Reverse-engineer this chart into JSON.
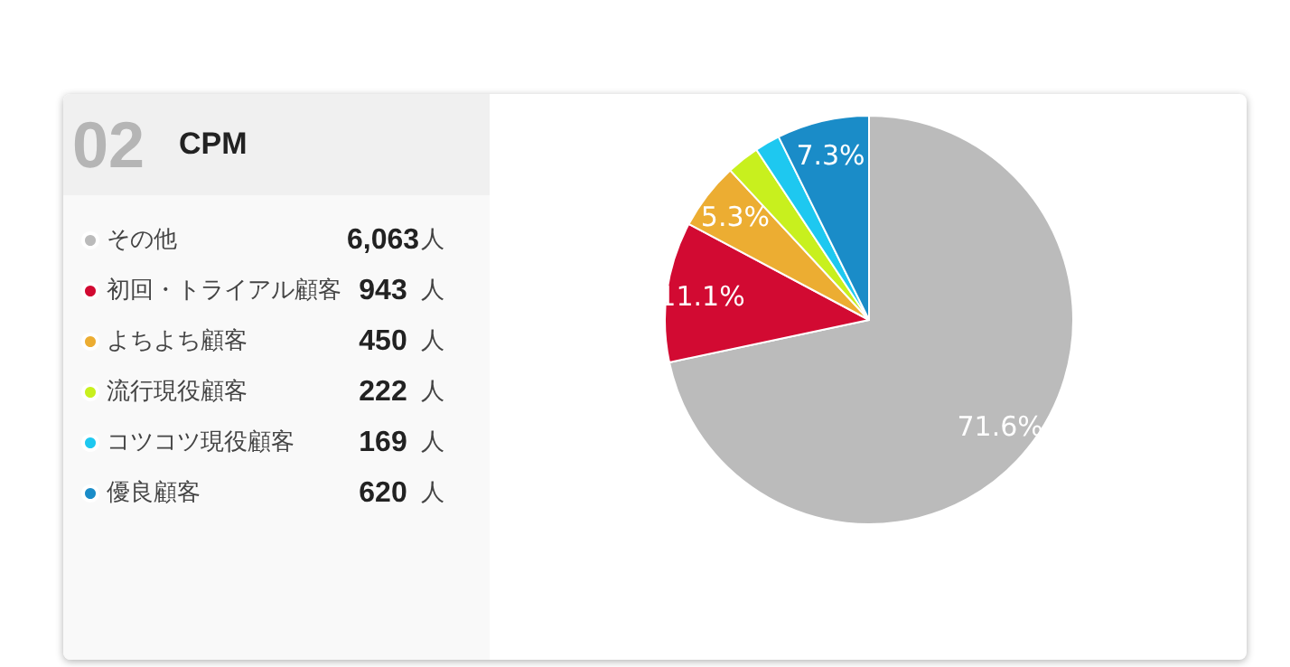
{
  "chart_data": {
    "type": "pie",
    "title": "CPM",
    "annotations": [
      "02",
      "6,063",
      "943",
      "450",
      "222",
      "169",
      "620",
      "人"
    ],
    "categories": [
      "その他",
      "初回・トライアル顧客",
      "よちよち顧客",
      "流行現役顧客",
      "コツコツ現役顧客",
      "優良顧客"
    ],
    "values": [
      71.6,
      11.1,
      5.3,
      2.6,
      2.0,
      7.3
    ],
    "colors": [
      "#bbbbbb",
      "#d20a32",
      "#ecad32",
      "#c8f01e",
      "#1ec8f0",
      "#1a8cc8"
    ],
    "value_labels": [
      "71.6%",
      "11.1%",
      "5.3%",
      null,
      null,
      "7.3%"
    ],
    "legend": "left"
  }
}
